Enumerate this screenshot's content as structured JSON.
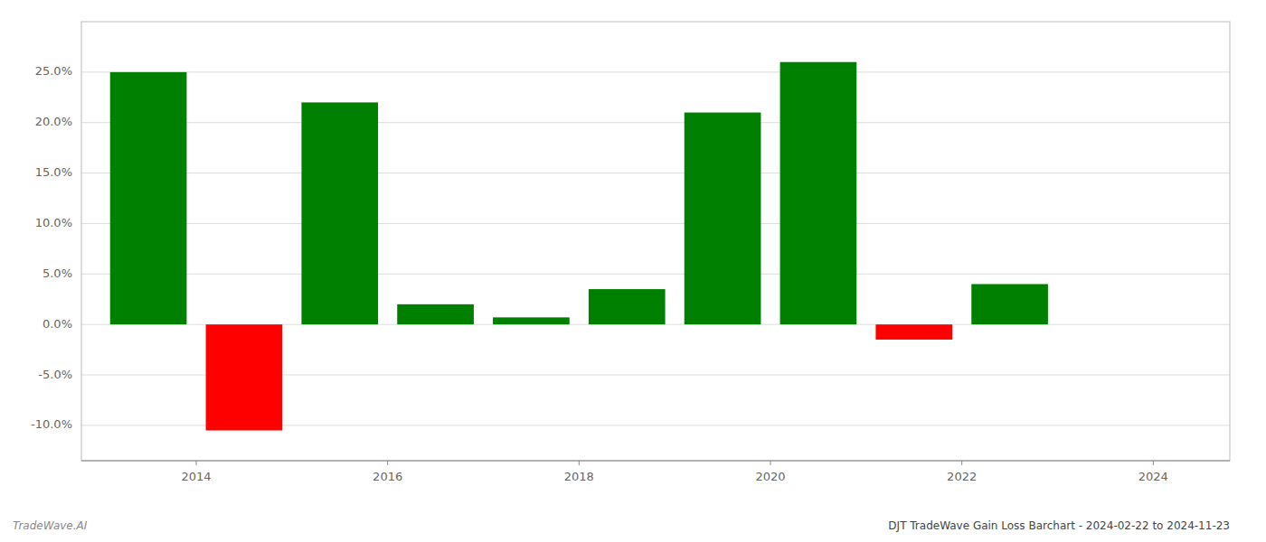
{
  "chart_data": {
    "type": "bar",
    "title": "DJT TradeWave Gain Loss Barchart - 2024-02-22 to 2024-11-23",
    "annotations": [
      "TradeWave.AI"
    ],
    "x": [
      2013.5,
      2014.5,
      2015.5,
      2016.5,
      2017.5,
      2018.5,
      2019.5,
      2020.5,
      2021.5,
      2022.5
    ],
    "values": [
      0.25,
      -0.105,
      0.22,
      0.02,
      0.007,
      0.035,
      0.21,
      0.26,
      -0.015,
      0.04
    ],
    "colors": [
      "#008000",
      "#ff0000",
      "#008000",
      "#008000",
      "#008000",
      "#008000",
      "#008000",
      "#008000",
      "#ff0000",
      "#008000"
    ],
    "xlim": [
      2012.8,
      2024.8
    ],
    "xticks": [
      2014,
      2016,
      2018,
      2020,
      2022,
      2024
    ],
    "ylim": [
      -0.135,
      0.3
    ],
    "yticks": [
      {
        "value": -0.1,
        "label": "-10.0%"
      },
      {
        "value": -0.05,
        "label": "-5.0%"
      },
      {
        "value": 0.0,
        "label": "0.0%"
      },
      {
        "value": 0.05,
        "label": "5.0%"
      },
      {
        "value": 0.1,
        "label": "10.0%"
      },
      {
        "value": 0.15,
        "label": "15.0%"
      },
      {
        "value": 0.2,
        "label": "20.0%"
      },
      {
        "value": 0.25,
        "label": "25.0%"
      }
    ],
    "grid": true
  }
}
